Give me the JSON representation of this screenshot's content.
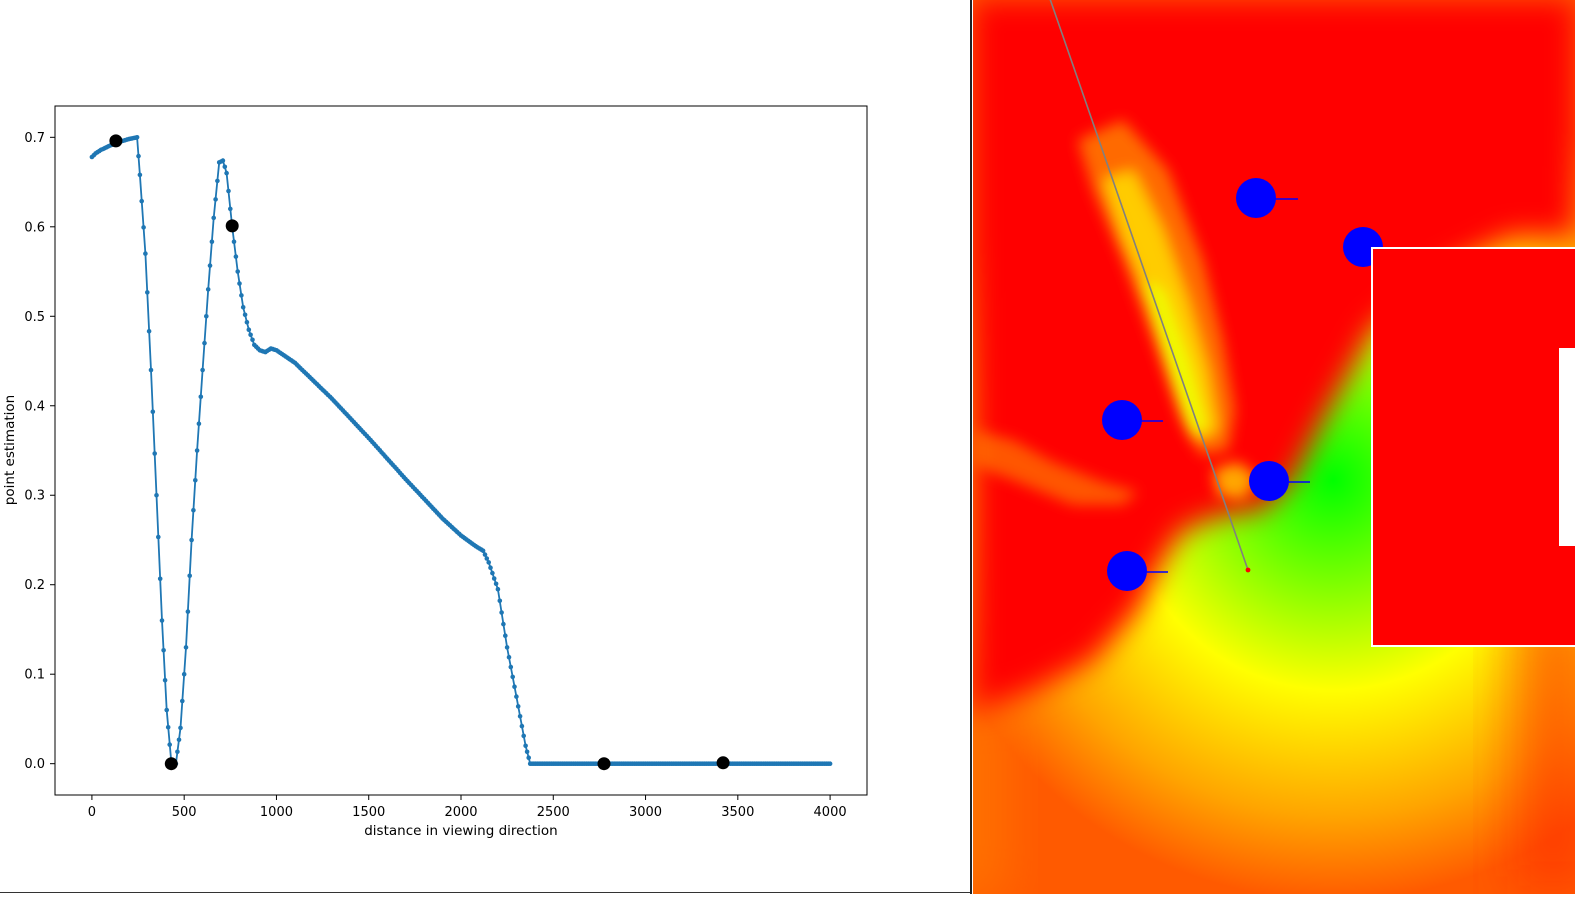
{
  "chart_data": {
    "type": "line",
    "xlabel": "distance in viewing direction",
    "ylabel": "point estimation",
    "xlim": [
      -200,
      4200
    ],
    "ylim": [
      -0.035,
      0.735
    ],
    "x_ticks": [
      0,
      500,
      1000,
      1500,
      2000,
      2500,
      3000,
      3500,
      4000
    ],
    "y_ticks": [
      0.0,
      0.1,
      0.2,
      0.3,
      0.4,
      0.5,
      0.6,
      0.7
    ],
    "grid": false,
    "series": [
      {
        "color": "#1f77b4",
        "marker": "dot",
        "points": [
          [
            0,
            0.678
          ],
          [
            20,
            0.682
          ],
          [
            50,
            0.686
          ],
          [
            100,
            0.691
          ],
          [
            150,
            0.695
          ],
          [
            200,
            0.698
          ],
          [
            245,
            0.7
          ],
          [
            260,
            0.658
          ],
          [
            290,
            0.57
          ],
          [
            320,
            0.44
          ],
          [
            350,
            0.3
          ],
          [
            380,
            0.16
          ],
          [
            405,
            0.06
          ],
          [
            430,
            0.002
          ],
          [
            455,
            0.0
          ],
          [
            480,
            0.04
          ],
          [
            510,
            0.13
          ],
          [
            540,
            0.25
          ],
          [
            570,
            0.35
          ],
          [
            600,
            0.44
          ],
          [
            630,
            0.53
          ],
          [
            660,
            0.61
          ],
          [
            690,
            0.672
          ],
          [
            710,
            0.674
          ],
          [
            730,
            0.66
          ],
          [
            760,
            0.6
          ],
          [
            790,
            0.55
          ],
          [
            820,
            0.51
          ],
          [
            850,
            0.485
          ],
          [
            880,
            0.468
          ],
          [
            910,
            0.462
          ],
          [
            940,
            0.46
          ],
          [
            970,
            0.464
          ],
          [
            1000,
            0.462
          ],
          [
            1100,
            0.448
          ],
          [
            1200,
            0.428
          ],
          [
            1300,
            0.408
          ],
          [
            1400,
            0.386
          ],
          [
            1500,
            0.364
          ],
          [
            1600,
            0.341
          ],
          [
            1700,
            0.318
          ],
          [
            1800,
            0.296
          ],
          [
            1900,
            0.274
          ],
          [
            2000,
            0.255
          ],
          [
            2080,
            0.243
          ],
          [
            2120,
            0.238
          ],
          [
            2150,
            0.225
          ],
          [
            2200,
            0.195
          ],
          [
            2250,
            0.13
          ],
          [
            2300,
            0.075
          ],
          [
            2350,
            0.02
          ],
          [
            2375,
            0.0
          ],
          [
            2500,
            0.0
          ],
          [
            3000,
            0.0
          ],
          [
            3500,
            0.0
          ],
          [
            4000,
            0.0
          ]
        ]
      }
    ],
    "highlight_points": [
      [
        130,
        0.696
      ],
      [
        760,
        0.601
      ],
      [
        430,
        0.0
      ],
      [
        2775,
        0.0
      ],
      [
        3420,
        0.001
      ]
    ]
  },
  "map": {
    "field_colors": [
      "#ff0000",
      "#ffff00",
      "#00ff00",
      "#ff8c00"
    ],
    "obstacle_color": "#0000ff",
    "ray_color": "#808080",
    "target_color": "#ff0000",
    "frame_color": "#ffffff"
  }
}
